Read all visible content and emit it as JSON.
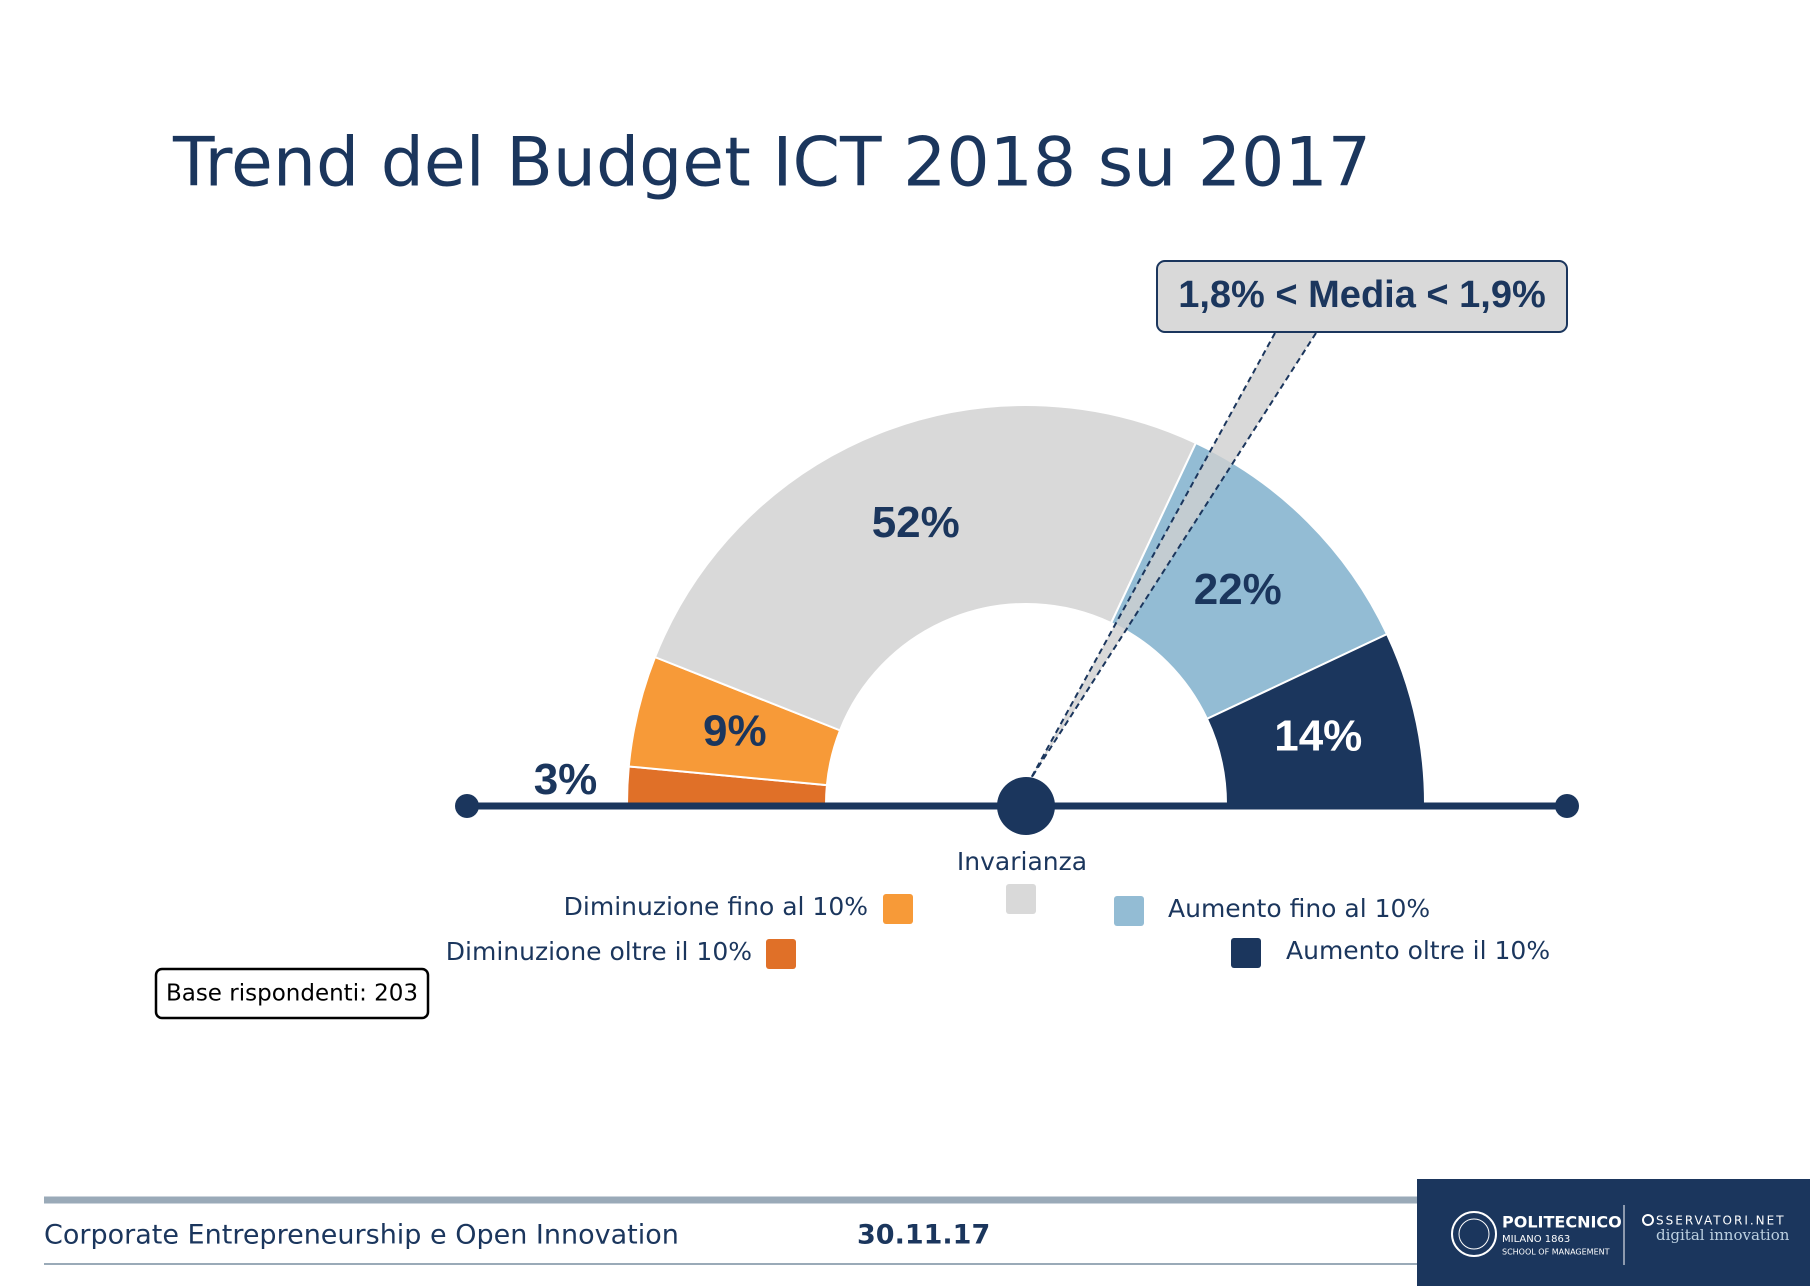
{
  "chart_data": {
    "type": "pie",
    "title": "Trend del Budget ICT 2018 su 2017",
    "categories": [
      "Diminuzione oltre il 10%",
      "Diminuzione fino al 10%",
      "Invarianza",
      "Aumento fino al 10%",
      "Aumento oltre il 10%"
    ],
    "values": [
      3,
      9,
      52,
      22,
      14
    ],
    "value_labels": [
      "3%",
      "9%",
      "52%",
      "22%",
      "14%"
    ],
    "colors": [
      "#e07028",
      "#f79a38",
      "#d9d9d9",
      "#93bcd4",
      "#1b365d"
    ],
    "annotation": "1,8% < Media < 1,9%",
    "note": "Base rispondenti: 203"
  },
  "footer": {
    "text": "Corporate Entrepreneurship e Open Innovation",
    "date": "30.11.17",
    "logo": {
      "name": "POLITECNICO",
      "city": "MILANO 1863",
      "school": "SCHOOL OF MANAGEMENT",
      "brand": "SSERVATORI.NET",
      "tagline": "digital innovation"
    }
  }
}
